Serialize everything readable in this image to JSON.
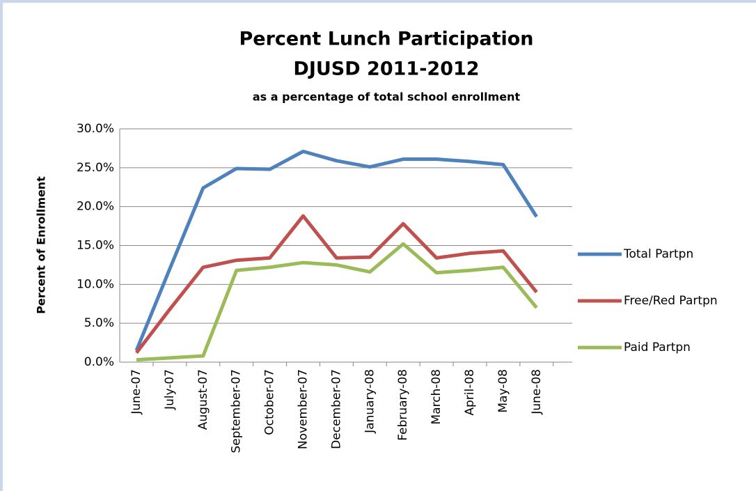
{
  "chart_data": {
    "type": "line",
    "title_lines": [
      "Percent Lunch Participation",
      "DJUSD 2011-2012"
    ],
    "subtitle": "as a percentage of total school enrollment",
    "y_label": "Percent of Enrollment",
    "categories": [
      "June-07",
      "July-07",
      "August-07",
      "September-07",
      "October-07",
      "November-07",
      "December-07",
      "January-08",
      "February-08",
      "March-08",
      "April-08",
      "May-08",
      "June-08"
    ],
    "series": [
      {
        "name": "Total Partpn",
        "color": "#4f81bd",
        "values": [
          1.5,
          12.0,
          22.4,
          24.9,
          24.8,
          27.1,
          25.9,
          25.1,
          26.1,
          26.1,
          25.8,
          25.4,
          18.7
        ]
      },
      {
        "name": "Free/Red Partpn",
        "color": "#c0504d",
        "values": [
          1.2,
          6.8,
          12.2,
          13.1,
          13.4,
          18.8,
          13.4,
          13.5,
          17.8,
          13.4,
          14.0,
          14.3,
          9.0
        ]
      },
      {
        "name": "Paid Partpn",
        "color": "#9bbb59",
        "values": [
          0.3,
          0.55,
          0.8,
          11.8,
          12.2,
          12.8,
          12.5,
          11.6,
          15.2,
          11.5,
          11.8,
          12.2,
          7.0
        ]
      }
    ],
    "ylim": [
      0,
      30
    ],
    "yticks": [
      {
        "value": 0,
        "label": "0.0%"
      },
      {
        "value": 5,
        "label": "5.0%"
      },
      {
        "value": 10,
        "label": "10.0%"
      },
      {
        "value": 15,
        "label": "15.0%"
      },
      {
        "value": 20,
        "label": "20.0%"
      },
      {
        "value": 25,
        "label": "25.0%"
      },
      {
        "value": 30,
        "label": "30.0%"
      }
    ],
    "grid": true,
    "legend": "right"
  }
}
